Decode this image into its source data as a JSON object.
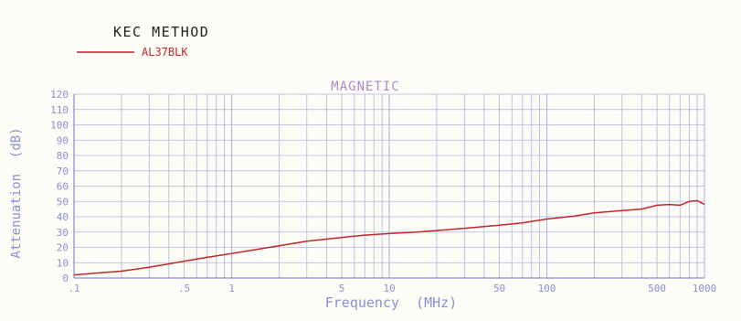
{
  "header": {
    "method": "KEC METHOD",
    "legend_label": "AL37BLK"
  },
  "colors": {
    "line": "#c0282a",
    "grid": "#aeb4e6",
    "axis_text": "#8a8fd8",
    "title": "#a98bd0",
    "ink": "#222222",
    "background": "#fdfcf6"
  },
  "chart_data": {
    "type": "line",
    "title": "MAGNETIC",
    "xlabel": "Frequency  (MHz)",
    "ylabel": "Attenuation  (dB)",
    "xscale": "log",
    "xlim": [
      0.1,
      1000
    ],
    "ylim": [
      0,
      120
    ],
    "grid": true,
    "legend": "top-left",
    "x_tick_labels": [
      {
        "x": 0.1,
        "label": ".1"
      },
      {
        "x": 0.5,
        "label": ".5"
      },
      {
        "x": 1,
        "label": "1"
      },
      {
        "x": 5,
        "label": "5"
      },
      {
        "x": 10,
        "label": "10"
      },
      {
        "x": 50,
        "label": "50"
      },
      {
        "x": 100,
        "label": "100"
      },
      {
        "x": 500,
        "label": "500"
      },
      {
        "x": 1000,
        "label": "1000"
      }
    ],
    "y_ticks": [
      0,
      10,
      20,
      30,
      40,
      50,
      60,
      70,
      80,
      90,
      100,
      110,
      120
    ],
    "series": [
      {
        "name": "AL37BLK",
        "x": [
          0.1,
          0.15,
          0.2,
          0.3,
          0.5,
          0.7,
          1,
          1.5,
          2,
          3,
          5,
          7,
          10,
          15,
          20,
          30,
          50,
          70,
          100,
          150,
          200,
          300,
          400,
          500,
          600,
          700,
          800,
          900,
          1000
        ],
        "y": [
          2,
          3.5,
          4.5,
          7,
          11,
          13.5,
          16,
          19,
          21,
          24,
          26.5,
          28,
          29,
          30,
          31,
          32.5,
          34.5,
          36,
          38.5,
          40.5,
          42.5,
          44,
          45,
          47.5,
          48,
          47.5,
          50,
          50.5,
          48
        ]
      }
    ]
  }
}
